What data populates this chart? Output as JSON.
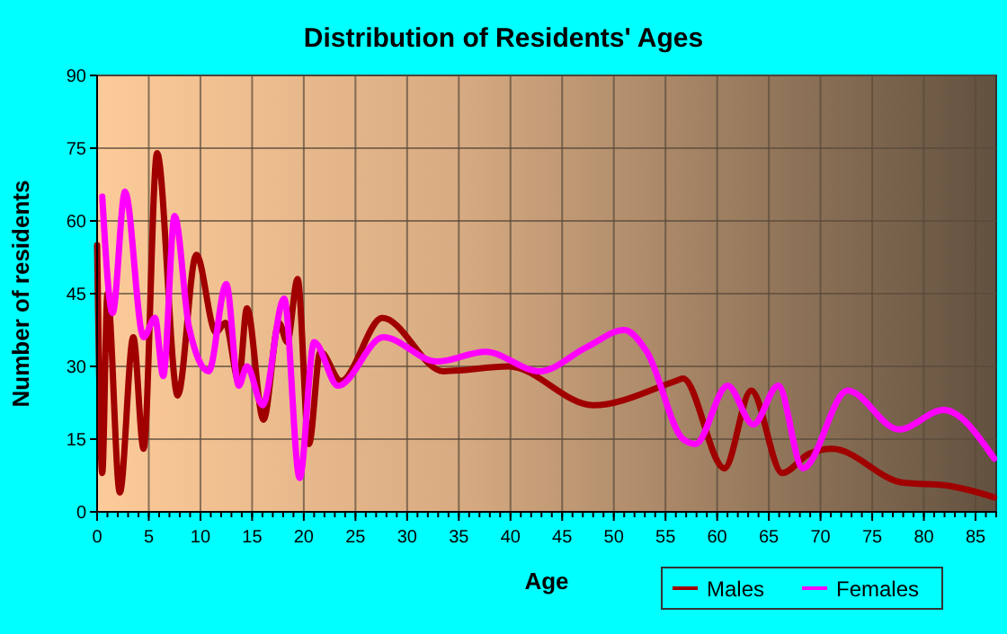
{
  "chart_data": {
    "type": "line",
    "title": "Distribution of Residents' Ages",
    "xlabel": "Age",
    "ylabel": "Number of residents",
    "xlim": [
      0,
      87
    ],
    "xticks": [
      0,
      5,
      10,
      15,
      20,
      25,
      30,
      35,
      40,
      45,
      50,
      55,
      60,
      65,
      70,
      75,
      80,
      85
    ],
    "ylim": [
      0,
      90
    ],
    "yticks": [
      0,
      15,
      30,
      45,
      60,
      75,
      90
    ],
    "grid": true,
    "legend": "bottom right",
    "marker": "none",
    "line_style": "solid",
    "series": [
      {
        "name": "Males",
        "color": "#a00000",
        "x": [
          0,
          0.5,
          1,
          2.2,
          3.5,
          4.5,
          5.8,
          7.8,
          9.6,
          11.5,
          12.4,
          13.7,
          14.5,
          16.1,
          17.6,
          18.4,
          19.4,
          20.5,
          21.6,
          23.6,
          27.6,
          33.5,
          39.8,
          48,
          56,
          56.7,
          60.7,
          63.3,
          66.3,
          68.9,
          71.1,
          78,
          82,
          86.8
        ],
        "values": [
          55,
          8,
          45,
          4,
          36,
          13,
          74,
          24,
          53,
          37,
          39,
          27,
          42,
          19,
          39,
          35,
          48,
          14,
          33,
          27,
          40,
          29,
          30,
          22,
          27,
          27.5,
          9,
          25,
          8,
          12,
          13,
          6,
          5.5,
          3
        ]
      },
      {
        "name": "Females",
        "color": "#ff00ff",
        "x": [
          0.5,
          1.5,
          2.7,
          4.5,
          5.6,
          6.4,
          7.5,
          8.9,
          10.8,
          12.5,
          13.7,
          14.5,
          16,
          18.1,
          19.6,
          21,
          23.3,
          27.7,
          32.9,
          37.6,
          42.8,
          47.4,
          51,
          53.2,
          56.7,
          57.9,
          61,
          63.5,
          65.9,
          68.3,
          72.6,
          77.6,
          81.9,
          86.8
        ],
        "values": [
          65,
          41,
          66,
          36,
          40,
          28,
          61,
          38,
          29,
          47,
          26,
          30,
          22,
          44,
          7,
          35,
          26,
          36,
          31,
          33,
          29,
          34,
          37.5,
          33,
          15,
          14,
          26,
          18,
          26,
          9,
          25,
          17,
          21,
          11
        ]
      }
    ]
  }
}
